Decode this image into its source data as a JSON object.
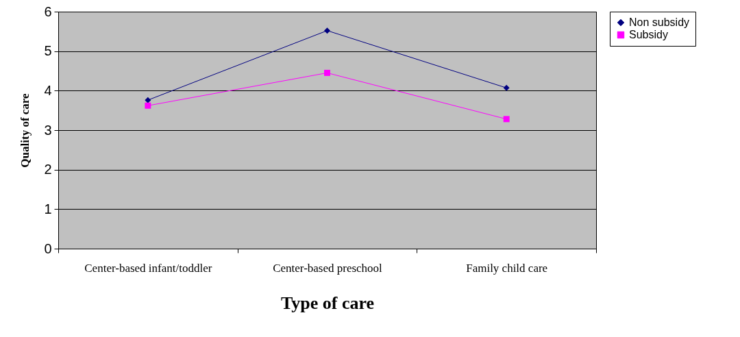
{
  "chart_data": {
    "type": "line",
    "xlabel": "Type of care",
    "ylabel": "Quality of care",
    "categories": [
      "Center-based infant/toddler",
      "Center-based preschool",
      "Family child care"
    ],
    "series": [
      {
        "name": "Non subsidy",
        "color": "#000080",
        "marker": "diamond",
        "values": [
          3.76,
          5.52,
          4.07
        ]
      },
      {
        "name": "Subsidy",
        "color": "#ff00ff",
        "marker": "square",
        "values": [
          3.62,
          4.45,
          3.28
        ]
      }
    ],
    "ylim": [
      0,
      6
    ],
    "yticks": [
      0,
      1,
      2,
      3,
      4,
      5,
      6
    ],
    "grid": "y",
    "legend": "right"
  }
}
